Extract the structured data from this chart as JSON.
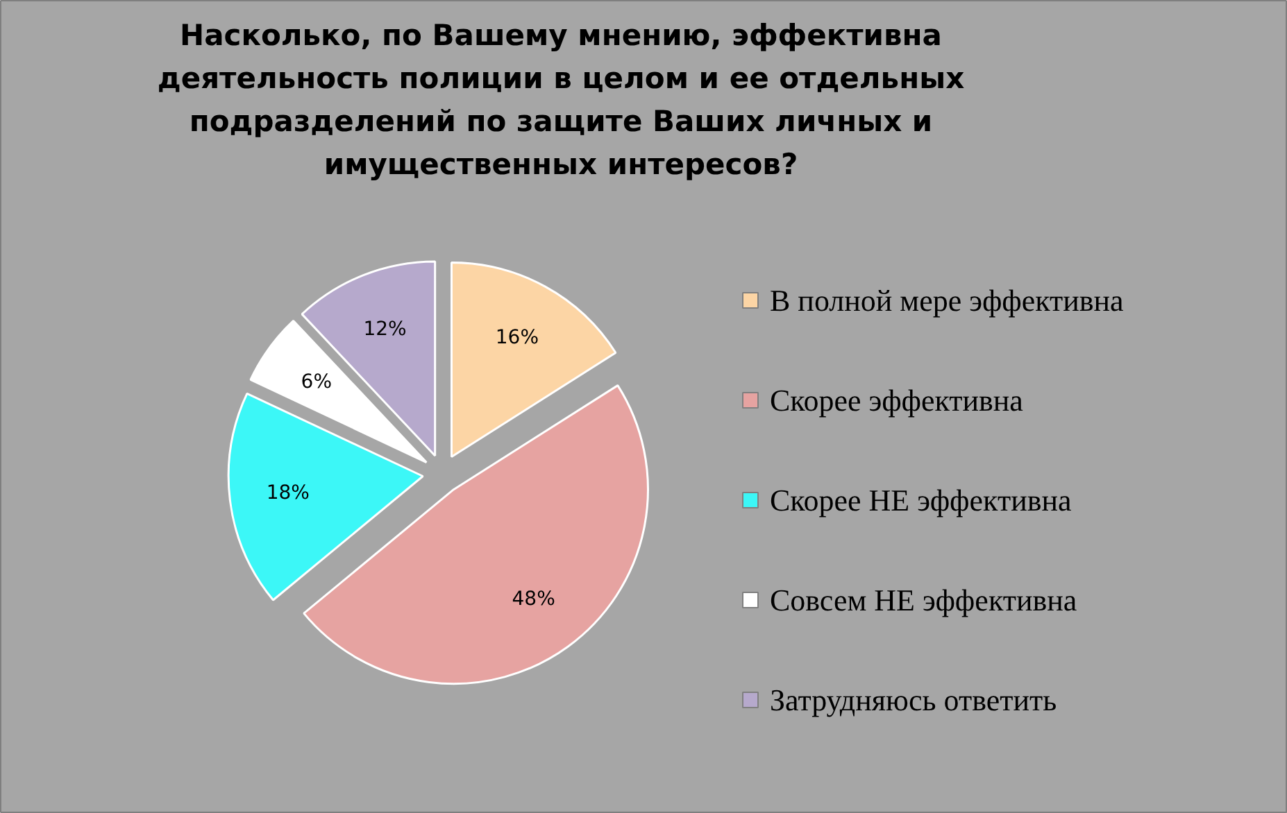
{
  "chart_data": {
    "type": "pie",
    "title": "Насколько, по Вашему мнению, эффективна деятельность полиции в целом и ее отдельных подразделений по защите Ваших личных и имущественных интересов?",
    "categories": [
      "В полной мере эффективна",
      "Скорее эффективна",
      "Скорее НЕ эффективна",
      "Совсем НЕ эффективна",
      "Затрудняюсь ответить"
    ],
    "values": [
      16,
      48,
      18,
      6,
      12
    ],
    "colors": [
      "#fcd5a5",
      "#e6a3a1",
      "#3cf7f7",
      "#ffffff",
      "#b6a9cc"
    ],
    "value_labels": [
      "16%",
      "48%",
      "18%",
      "6%",
      "12%"
    ],
    "legend": "right"
  }
}
